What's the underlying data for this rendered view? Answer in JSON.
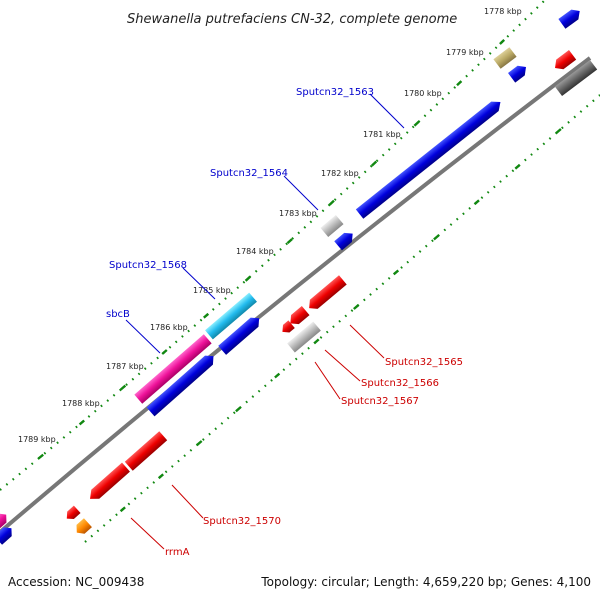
{
  "title": "Shewanella putrefaciens CN-32, complete genome",
  "accession": "Accession: NC_009438",
  "topology": "Topology: circular; Length: 4,659,220 bp; Genes: 4,100",
  "colors": {
    "backbone": "#777777",
    "tick_dots": "#118811",
    "forward_label": "#0000cc",
    "reverse_label": "#cc0000"
  },
  "kbp_ticks": [
    "1778 kbp",
    "1779 kbp",
    "1780 kbp",
    "1781 kbp",
    "1782 kbp",
    "1783 kbp",
    "1784 kbp",
    "1785 kbp",
    "1786 kbp",
    "1787 kbp",
    "1788 kbp",
    "1789 kbp"
  ],
  "genes_forward": [
    {
      "label": "Sputcn32_1563",
      "color": "#0000ee"
    },
    {
      "label": "Sputcn32_1564",
      "color": "#0000ee"
    },
    {
      "label": "Sputcn32_1568",
      "color": "#22ccee"
    },
    {
      "label": "sbcB",
      "color": "#ee1199"
    }
  ],
  "genes_reverse": [
    {
      "label": "Sputcn32_1565",
      "color": "#ee0000"
    },
    {
      "label": "Sputcn32_1566",
      "color": "#ee0000"
    },
    {
      "label": "Sputcn32_1567",
      "color": "#bbbbbb"
    },
    {
      "label": "Sputcn32_1570",
      "color": "#ee0000"
    },
    {
      "label": "rrmA",
      "color": "#ee0000"
    }
  ]
}
